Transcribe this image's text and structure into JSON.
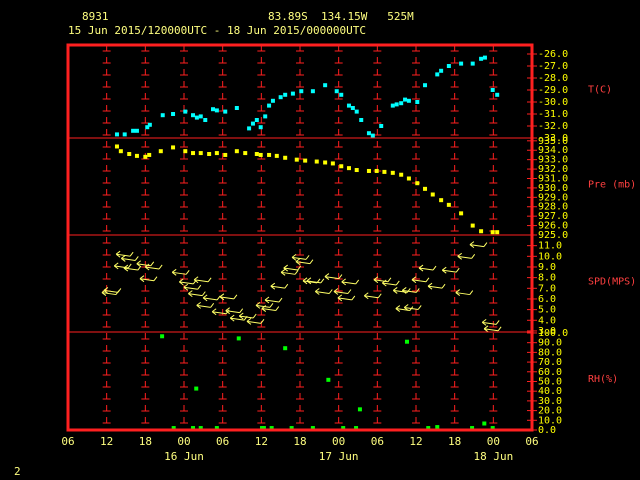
{
  "header": {
    "station": "8931",
    "location": "83.89S  134.15W   525M",
    "period": "15 Jun 2015/120000UTC - 18 Jun 2015/000000UTC"
  },
  "footer": "2",
  "chart_data": [
    {
      "type": "scatter",
      "marker": "square",
      "y_label": "T(C)",
      "color": "#00ffff",
      "x": [
        7.6,
        8.8,
        10.1,
        10.7,
        12.3,
        12.7,
        14.7,
        16.3,
        18.2,
        19.4,
        20.0,
        20.6,
        21.3,
        22.5,
        23.1,
        24.4,
        26.2,
        28.1,
        28.7,
        29.3,
        29.9,
        30.6,
        31.2,
        31.8,
        33.0,
        33.7,
        34.9,
        36.2,
        38.0,
        39.9,
        41.7,
        42.4,
        43.6,
        44.2,
        44.8,
        45.5,
        46.7,
        47.3,
        48.6,
        50.4,
        51.0,
        51.7,
        52.3,
        52.9,
        54.2,
        55.4,
        57.3,
        57.9,
        59.1,
        61.0,
        62.8,
        64.1,
        64.7,
        65.9,
        66.6
      ],
      "values": [
        -32.7,
        -32.7,
        -32.4,
        -32.4,
        -32.1,
        -31.9,
        -31.1,
        -31.0,
        -30.8,
        -31.1,
        -31.3,
        -31.2,
        -31.5,
        -30.6,
        -30.7,
        -30.8,
        -30.5,
        -32.2,
        -31.8,
        -31.5,
        -32.1,
        -31.2,
        -30.3,
        -29.9,
        -29.6,
        -29.4,
        -29.3,
        -29.1,
        -29.1,
        -28.6,
        -29.1,
        -29.4,
        -30.3,
        -30.5,
        -30.8,
        -31.5,
        -32.6,
        -32.8,
        -32.0,
        -30.3,
        -30.2,
        -30.1,
        -29.8,
        -29.9,
        -30.0,
        -28.6,
        -27.7,
        -27.4,
        -27.0,
        -26.8,
        -26.8,
        -26.4,
        -26.3,
        -29.0,
        -29.4
      ],
      "xlim": [
        0,
        72
      ],
      "ylim": [
        -33,
        -25.25
      ],
      "yticks": [
        {
          "value": -26,
          "label": "-26.0"
        },
        {
          "value": -27,
          "label": "-27.0"
        },
        {
          "value": -28,
          "label": "-28.0"
        },
        {
          "value": -29,
          "label": "-29.0"
        },
        {
          "value": -30,
          "label": "-30.0"
        },
        {
          "value": -31,
          "label": "-31.0"
        },
        {
          "value": -32,
          "label": "-32.0"
        },
        {
          "value": -33,
          "label": "-33.0"
        }
      ]
    },
    {
      "type": "scatter",
      "marker": "square",
      "y_label": "Pre (mb)",
      "color": "#ffff00",
      "x": [
        7.6,
        8.2,
        9.5,
        10.7,
        12.0,
        12.6,
        14.4,
        16.3,
        18.2,
        19.4,
        20.6,
        21.9,
        23.1,
        24.4,
        26.2,
        27.5,
        29.3,
        29.9,
        31.2,
        32.4,
        33.7,
        35.5,
        36.8,
        38.6,
        39.9,
        41.1,
        42.4,
        43.6,
        44.8,
        46.7,
        47.9,
        49.1,
        50.4,
        51.7,
        52.9,
        54.2,
        55.4,
        56.6,
        57.9,
        59.1,
        61.0,
        62.8,
        64.1,
        65.9,
        66.6
      ],
      "values": [
        934.4,
        933.9,
        933.6,
        933.4,
        933.3,
        933.5,
        933.9,
        934.3,
        933.9,
        933.7,
        933.7,
        933.6,
        933.7,
        933.5,
        933.9,
        933.7,
        933.6,
        933.5,
        933.5,
        933.4,
        933.2,
        933.0,
        932.9,
        932.8,
        932.7,
        932.6,
        932.3,
        932.1,
        931.9,
        931.8,
        931.8,
        931.7,
        931.6,
        931.4,
        931.0,
        930.5,
        929.9,
        929.3,
        928.7,
        928.2,
        927.3,
        926.0,
        925.4,
        925.3,
        925.3
      ],
      "xlim": [
        0,
        72
      ],
      "ylim": [
        925,
        935.3
      ],
      "yticks": [
        {
          "value": 935,
          "label": "935.0"
        },
        {
          "value": 934,
          "label": "934.0"
        },
        {
          "value": 933,
          "label": "933.0"
        },
        {
          "value": 932,
          "label": "932.0"
        },
        {
          "value": 931,
          "label": "931.0"
        },
        {
          "value": 930,
          "label": "930.0"
        },
        {
          "value": 929,
          "label": "929.0"
        },
        {
          "value": 928,
          "label": "928.0"
        },
        {
          "value": 927,
          "label": "927.0"
        },
        {
          "value": 926,
          "label": "926.0"
        },
        {
          "value": 925,
          "label": "925.0"
        }
      ]
    },
    {
      "type": "scatter",
      "marker": "arrow",
      "y_label": "SPD(MPS)",
      "color": "#ffff66",
      "x": [
        6.2,
        6.5,
        8.4,
        9.2,
        8.1,
        9.6,
        11.6,
        12.9,
        12.1,
        17.1,
        18.2,
        18.9,
        19.6,
        20.5,
        21.9,
        20.9,
        24.5,
        23.3,
        25.4,
        26.1,
        27.5,
        28.7,
        31.0,
        30.1,
        31.5,
        32.4,
        34.0,
        34.4,
        35.7,
        36.3,
        37.4,
        39.3,
        38.0,
        40.8,
        43.4,
        42.2,
        42.8,
        46.9,
        48.4,
        49.7,
        51.4,
        52.8,
        51.8,
        53.1,
        54.3,
        55.4,
        56.8,
        59.0,
        61.4,
        61.1,
        63.3,
        65.2,
        65.5
      ],
      "values": [
        6.6,
        6.8,
        10.2,
        9.8,
        9.1,
        8.9,
        9.3,
        9.0,
        7.9,
        8.5,
        7.6,
        7.1,
        6.5,
        7.8,
        6.1,
        5.4,
        6.2,
        4.8,
        4.9,
        4.2,
        4.4,
        3.9,
        5.1,
        5.4,
        5.9,
        7.2,
        8.5,
        8.9,
        9.9,
        9.5,
        7.7,
        6.7,
        7.7,
        8.1,
        7.6,
        6.7,
        6.1,
        6.3,
        7.8,
        7.5,
        6.8,
        6.8,
        5.1,
        5.2,
        7.8,
        8.9,
        7.2,
        8.7,
        10.0,
        6.6,
        11.1,
        3.8,
        3.2
      ],
      "xlim": [
        0,
        72
      ],
      "ylim": [
        2.9,
        12
      ],
      "yticks": [
        {
          "value": 11,
          "label": "11.0"
        },
        {
          "value": 10,
          "label": "10.0"
        },
        {
          "value": 9,
          "label": "9.0"
        },
        {
          "value": 8,
          "label": "8.0"
        },
        {
          "value": 7,
          "label": "7.0"
        },
        {
          "value": 6,
          "label": "6.0"
        },
        {
          "value": 5,
          "label": "5.0"
        },
        {
          "value": 4,
          "label": "4.0"
        },
        {
          "value": 3,
          "label": "3.0"
        }
      ]
    },
    {
      "type": "scatter",
      "marker": "square",
      "y_label": "RH(%)",
      "color": "#00ff00",
      "x": [
        14.6,
        19.9,
        26.5,
        33.7,
        40.4,
        45.3,
        52.6,
        64.6,
        16.4,
        19.4,
        20.6,
        23.1,
        30.1,
        30.4,
        31.6,
        34.7,
        38.0,
        42.7,
        44.7,
        55.9,
        57.3,
        62.7,
        65.9
      ],
      "values": [
        96.6,
        42.7,
        94.4,
        84.3,
        51.7,
        21.3,
        91.0,
        6.7,
        2,
        2,
        2,
        2,
        2,
        2,
        2,
        2,
        2,
        2,
        2,
        2,
        3,
        2,
        2
      ],
      "xlim": [
        0,
        72
      ],
      "ylim": [
        0,
        101
      ],
      "yticks": [
        {
          "value": 100,
          "label": "100.0"
        },
        {
          "value": 90,
          "label": "90.0"
        },
        {
          "value": 80,
          "label": "80.0"
        },
        {
          "value": 70,
          "label": "70.0"
        },
        {
          "value": 60,
          "label": "60.0"
        },
        {
          "value": 50,
          "label": "50.0"
        },
        {
          "value": 40,
          "label": "40.0"
        },
        {
          "value": 30,
          "label": "30.0"
        },
        {
          "value": 20,
          "label": "20.0"
        },
        {
          "value": 10,
          "label": "10.0"
        },
        {
          "value": 0,
          "label": "0.0"
        }
      ],
      "xticks": [
        {
          "value": 0,
          "label": "06"
        },
        {
          "value": 6,
          "label": "12"
        },
        {
          "value": 12,
          "label": "18"
        },
        {
          "value": 18,
          "label": "00"
        },
        {
          "value": 24,
          "label": "06"
        },
        {
          "value": 30,
          "label": "12"
        },
        {
          "value": 36,
          "label": "18"
        },
        {
          "value": 42,
          "label": "00"
        },
        {
          "value": 48,
          "label": "06"
        },
        {
          "value": 54,
          "label": "12"
        },
        {
          "value": 60,
          "label": "18"
        },
        {
          "value": 66,
          "label": "00"
        },
        {
          "value": 72,
          "label": "06"
        }
      ],
      "date_labels": [
        {
          "value": 18,
          "label": "16 Jun"
        },
        {
          "value": 42,
          "label": "17 Jun"
        },
        {
          "value": 66,
          "label": "18 Jun"
        }
      ]
    }
  ]
}
